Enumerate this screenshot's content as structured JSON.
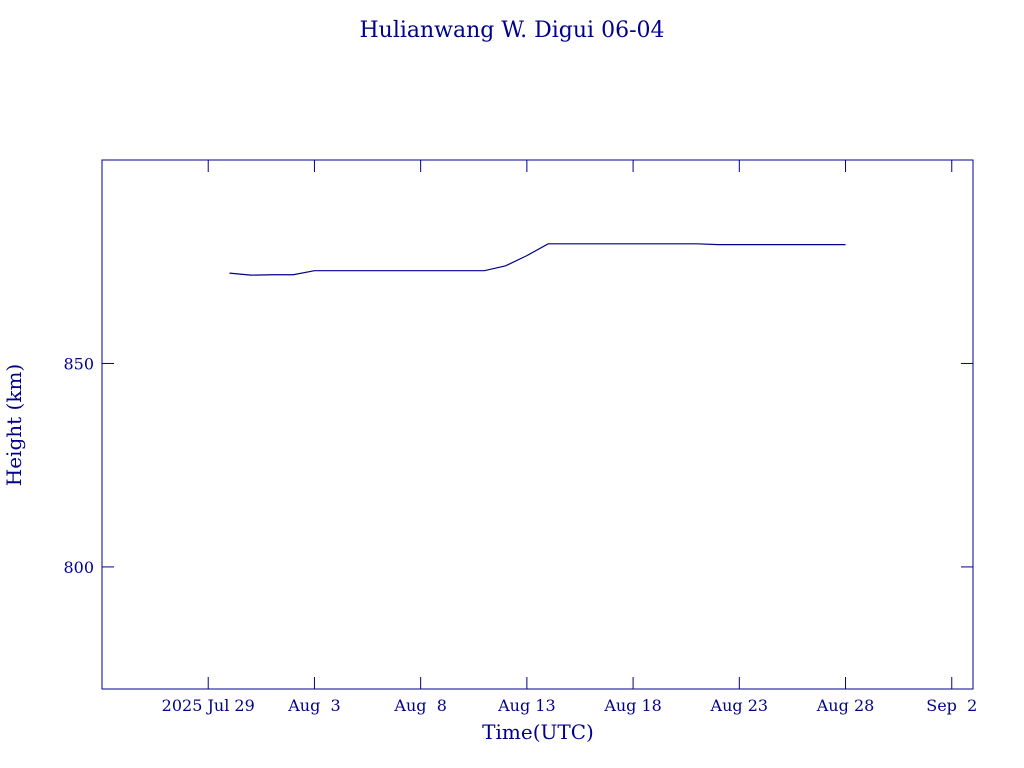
{
  "chart_data": {
    "type": "line",
    "title": "Hulianwang W. Digui 06-04",
    "xlabel": "Time(UTC)",
    "ylabel": "Height (km)",
    "color": "#00008b",
    "x": [
      "2025-07-30",
      "2025-07-31",
      "2025-08-01",
      "2025-08-02",
      "2025-08-03",
      "2025-08-04",
      "2025-08-05",
      "2025-08-06",
      "2025-08-07",
      "2025-08-08",
      "2025-08-09",
      "2025-08-10",
      "2025-08-11",
      "2025-08-12",
      "2025-08-13",
      "2025-08-14",
      "2025-08-15",
      "2025-08-16",
      "2025-08-17",
      "2025-08-18",
      "2025-08-19",
      "2025-08-20",
      "2025-08-21",
      "2025-08-22",
      "2025-08-23",
      "2025-08-24",
      "2025-08-25",
      "2025-08-26",
      "2025-08-27",
      "2025-08-28"
    ],
    "series": [
      {
        "name": "Height",
        "color": "#00008b",
        "values": [
          872.2,
          871.7,
          871.8,
          871.8,
          872.8,
          872.8,
          872.8,
          872.8,
          872.8,
          872.8,
          872.8,
          872.8,
          872.8,
          874.0,
          876.5,
          879.4,
          879.4,
          879.4,
          879.4,
          879.4,
          879.4,
          879.4,
          879.4,
          879.2,
          879.2,
          879.2,
          879.2,
          879.2,
          879.2,
          879.2
        ]
      }
    ],
    "xlim": [
      "2025-07-24",
      "2025-09-03"
    ],
    "xticks": [
      {
        "value": "2025-07-29",
        "label": "2025 Jul 29"
      },
      {
        "value": "2025-08-03",
        "label": "Aug  3"
      },
      {
        "value": "2025-08-08",
        "label": "Aug  8"
      },
      {
        "value": "2025-08-13",
        "label": "Aug 13"
      },
      {
        "value": "2025-08-18",
        "label": "Aug 18"
      },
      {
        "value": "2025-08-23",
        "label": "Aug 23"
      },
      {
        "value": "2025-08-28",
        "label": "Aug 28"
      },
      {
        "value": "2025-09-02",
        "label": "Sep  2"
      }
    ],
    "ylim": [
      770,
      900
    ],
    "yticks": [
      800,
      850
    ]
  }
}
